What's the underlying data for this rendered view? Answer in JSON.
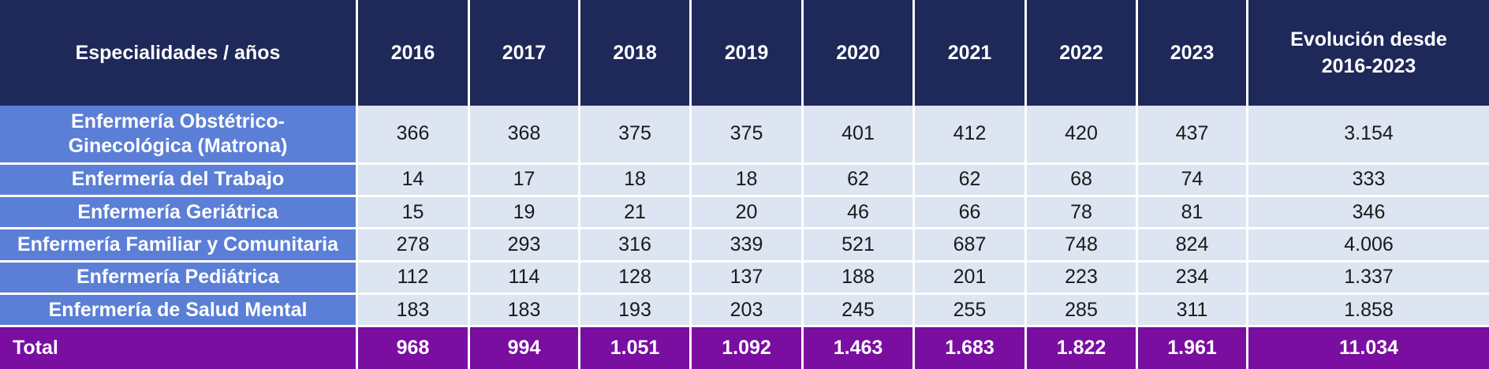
{
  "header": {
    "label": "Especialidades / años",
    "years": [
      "2016",
      "2017",
      "2018",
      "2019",
      "2020",
      "2021",
      "2022",
      "2023"
    ],
    "evolution_line1": "Evolución desde",
    "evolution_line2": "2016-2023"
  },
  "rows": [
    {
      "label_line1": "Enfermería Obstétrico-",
      "label_line2": "Ginecológica (Matrona)",
      "values": [
        "366",
        "368",
        "375",
        "375",
        "401",
        "412",
        "420",
        "437"
      ],
      "evolution": "3.154"
    },
    {
      "label": "Enfermería del Trabajo",
      "values": [
        "14",
        "17",
        "18",
        "18",
        "62",
        "62",
        "68",
        "74"
      ],
      "evolution": "333"
    },
    {
      "label": "Enfermería Geriátrica",
      "values": [
        "15",
        "19",
        "21",
        "20",
        "46",
        "66",
        "78",
        "81"
      ],
      "evolution": "346"
    },
    {
      "label": "Enfermería Familiar y Comunitaria",
      "values": [
        "278",
        "293",
        "316",
        "339",
        "521",
        "687",
        "748",
        "824"
      ],
      "evolution": "4.006"
    },
    {
      "label": "Enfermería Pediátrica",
      "values": [
        "112",
        "114",
        "128",
        "137",
        "188",
        "201",
        "223",
        "234"
      ],
      "evolution": "1.337"
    },
    {
      "label": "Enfermería de Salud Mental",
      "values": [
        "183",
        "183",
        "193",
        "203",
        "245",
        "255",
        "285",
        "311"
      ],
      "evolution": "1.858"
    }
  ],
  "total": {
    "label": "Total",
    "values": [
      "968",
      "994",
      "1.051",
      "1.092",
      "1.463",
      "1.683",
      "1.822",
      "1.961"
    ],
    "evolution": "11.034"
  },
  "colors": {
    "header_bg": "#1e2859",
    "row_label_bg": "#5b7fd6",
    "cell_bg": "#dce5f1",
    "total_bg": "#7a0ea0"
  }
}
